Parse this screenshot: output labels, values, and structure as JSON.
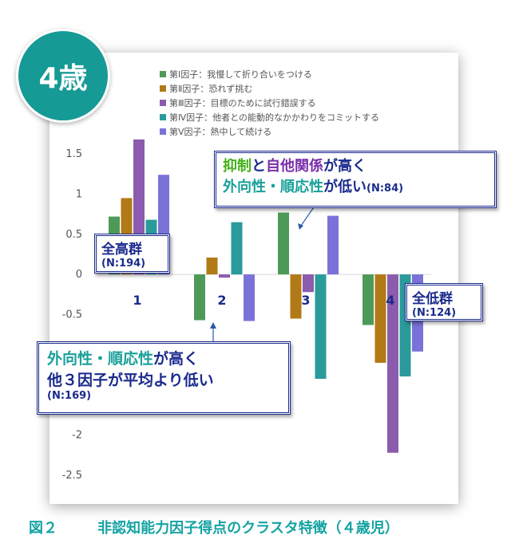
{
  "badge": {
    "label": "4歳"
  },
  "colors": {
    "teal": "#169a96",
    "navy": "#1a2a8c"
  },
  "chart_data": {
    "type": "bar",
    "categories": [
      "1",
      "2",
      "3",
      "4"
    ],
    "series": [
      {
        "name": "第Ⅰ因子：我慢して折り合いをつける",
        "color": "#4d9a58",
        "values": [
          0.72,
          -0.57,
          0.77,
          -0.63
        ]
      },
      {
        "name": "第Ⅱ因子：恐れず挑む",
        "color": "#b27a16",
        "values": [
          0.95,
          0.21,
          -0.55,
          -1.1
        ]
      },
      {
        "name": "第Ⅲ因子：目標のために試行錯誤する",
        "color": "#8b5cae",
        "values": [
          1.68,
          -0.04,
          -0.22,
          -2.22
        ]
      },
      {
        "name": "第Ⅳ因子：他者との能動的なかかわりをコミットする",
        "color": "#2a9a9a",
        "values": [
          0.68,
          0.65,
          -1.3,
          -1.27
        ]
      },
      {
        "name": "第Ⅴ因子：熱中して続ける",
        "color": "#7a72d8",
        "values": [
          1.24,
          -0.58,
          0.73,
          -0.96
        ]
      }
    ],
    "yticks": [
      "1.5",
      "1",
      "0.5",
      "0",
      "-0.5",
      "-1",
      "-1.5",
      "-2",
      "-2.5"
    ],
    "ylim": [
      -2.5,
      1.5
    ],
    "grid": false,
    "legend_position": "top"
  },
  "callouts": {
    "top": {
      "w1": "抑制",
      "w2": "と",
      "w3": "自他関係",
      "w4": "が高く",
      "w5": "外向性・順応性",
      "w6": "が低い",
      "w7": "(N:84)"
    },
    "left": {
      "w1": "外向性・順応性",
      "w2": "が高く",
      "w3": "他３因子が平均より低い",
      "w4": "(N:169)"
    },
    "high": {
      "title": "全高群",
      "n": "(N:194)"
    },
    "low": {
      "title": "全低群",
      "n": "(N:124)"
    }
  },
  "caption": {
    "fig": "図２",
    "text": "非認知能力因子得点のクラスタ特徴（４歳児）"
  }
}
